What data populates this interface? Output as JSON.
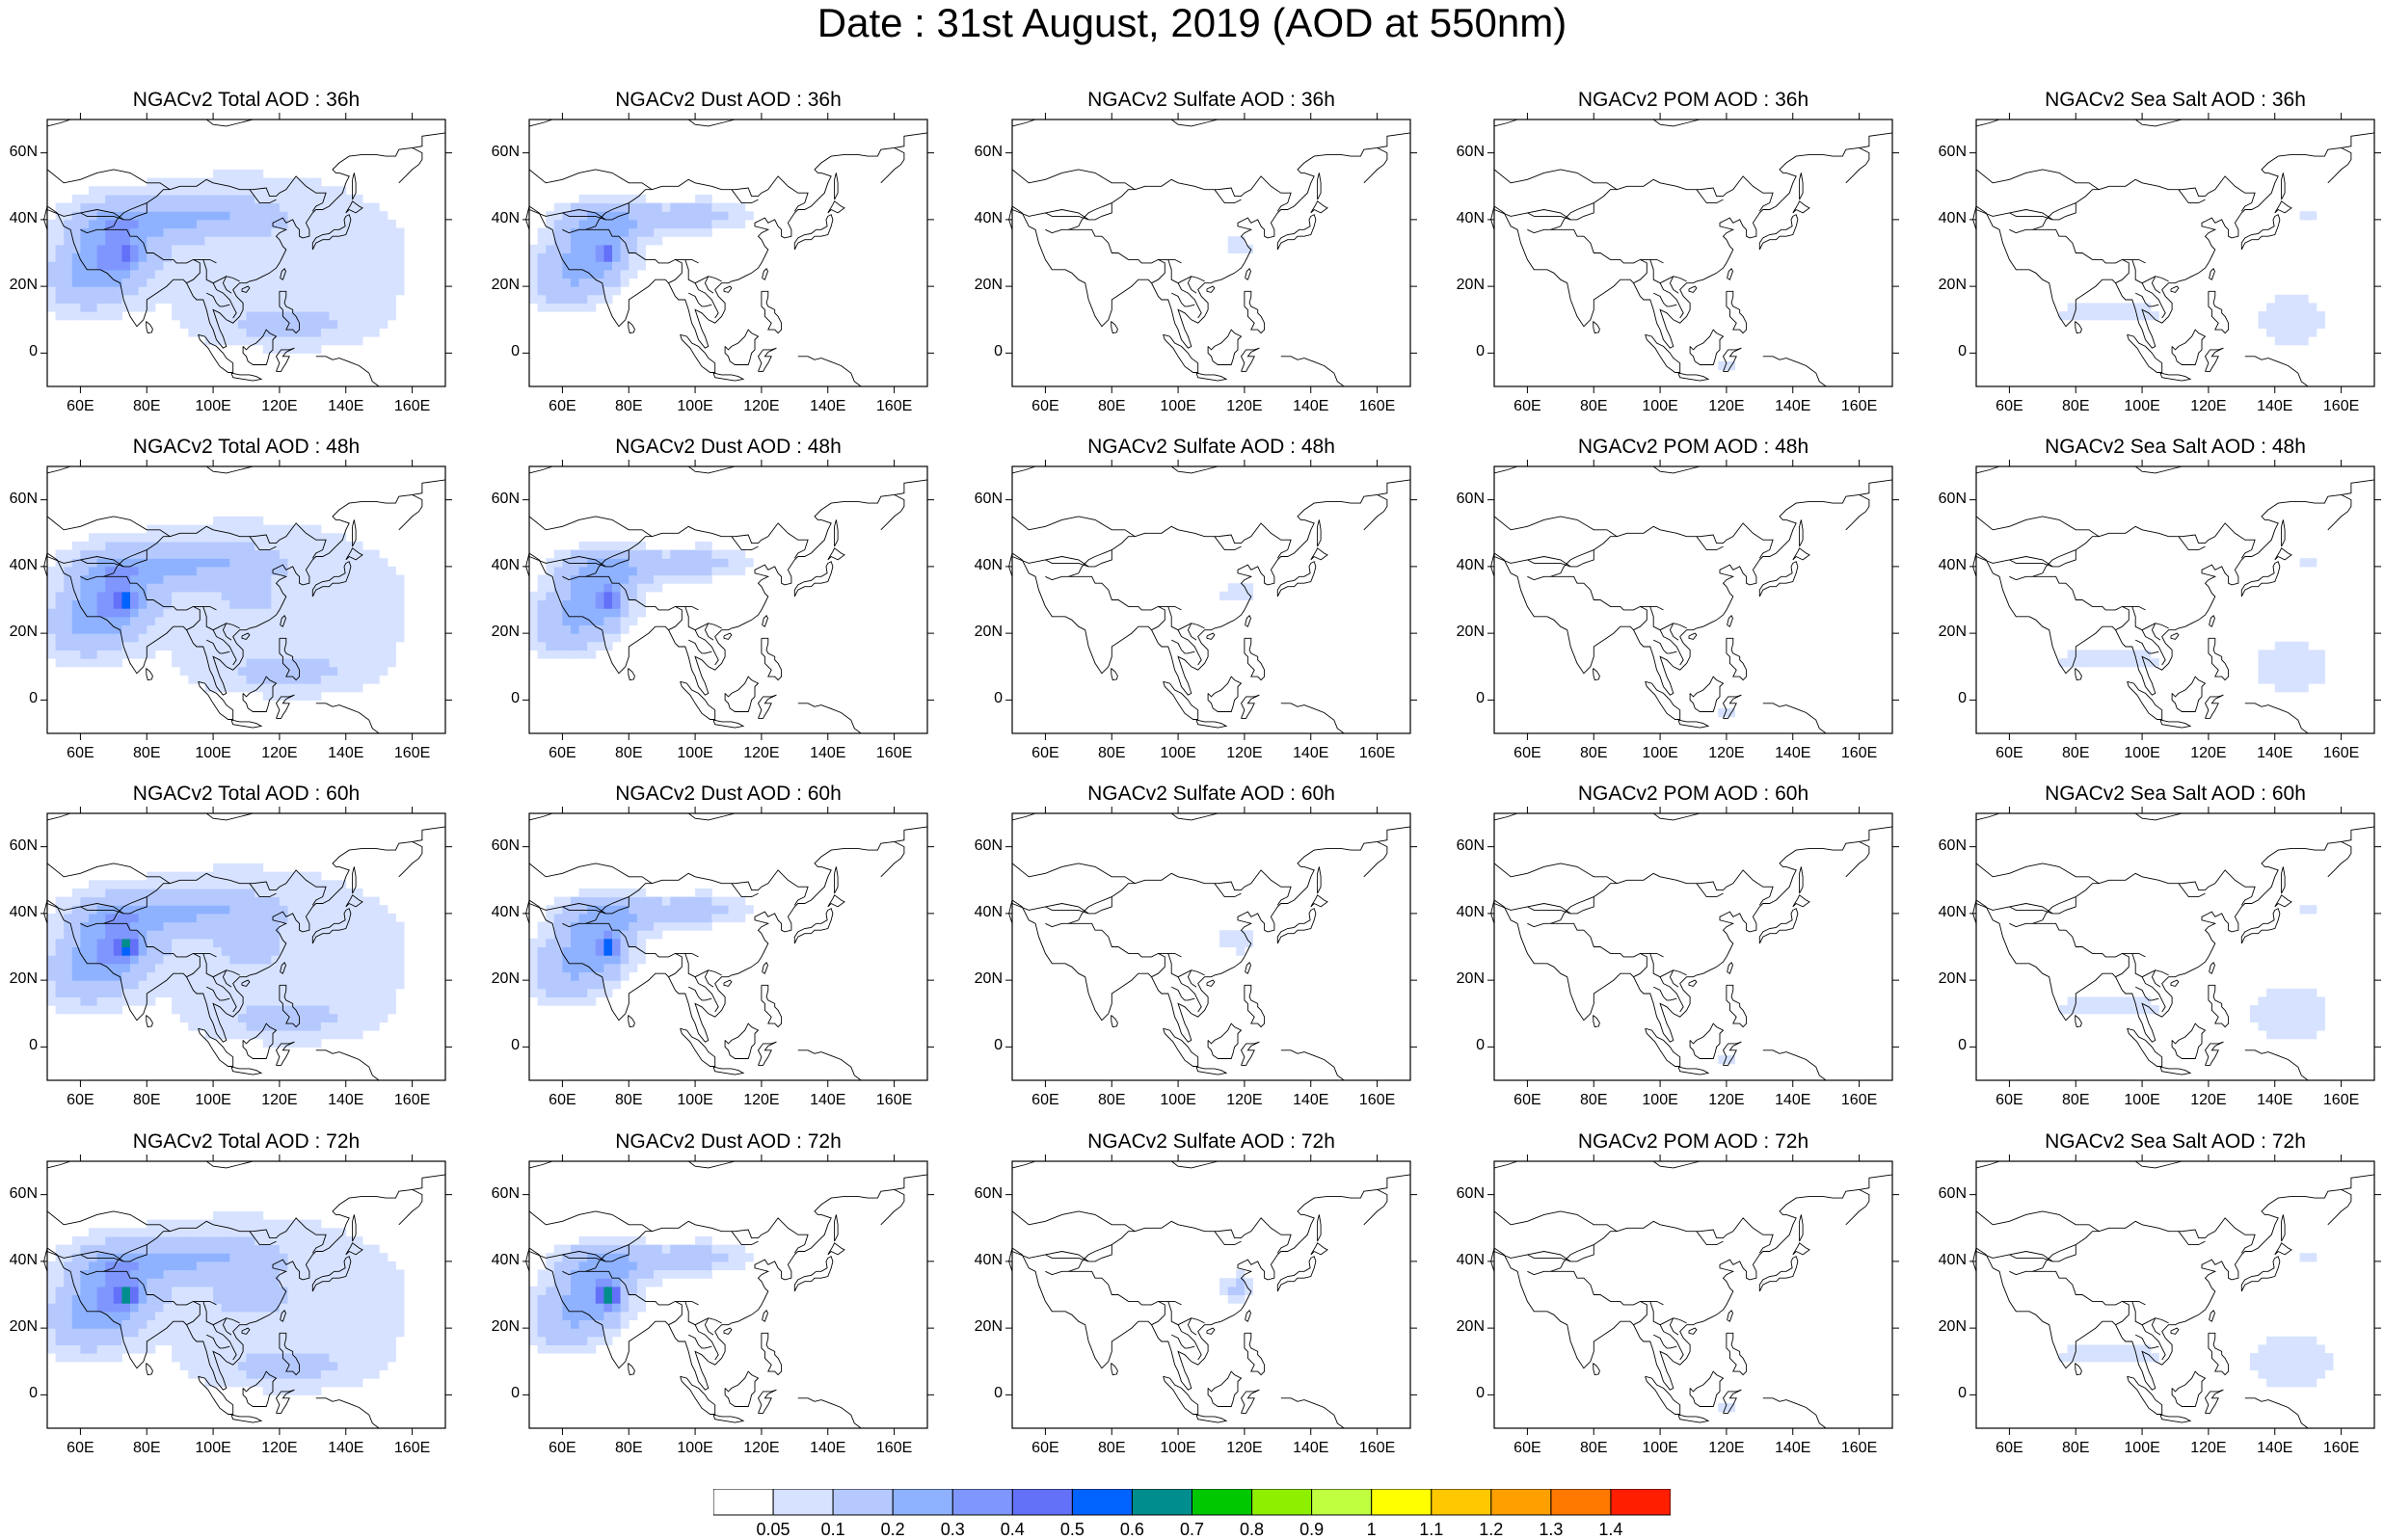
{
  "title": "Date : 31st August, 2019 (AOD at 550nm)",
  "panels": [
    {
      "title": "NGACv2 Total AOD : 36h"
    },
    {
      "title": "NGACv2 Dust AOD : 36h"
    },
    {
      "title": "NGACv2 Sulfate AOD : 36h"
    },
    {
      "title": "NGACv2 POM AOD : 36h"
    },
    {
      "title": "NGACv2 Sea Salt AOD : 36h"
    },
    {
      "title": "NGACv2 Total AOD : 48h"
    },
    {
      "title": "NGACv2 Dust AOD : 48h"
    },
    {
      "title": "NGACv2 Sulfate AOD : 48h"
    },
    {
      "title": "NGACv2 POM AOD : 48h"
    },
    {
      "title": "NGACv2 Sea Salt AOD : 48h"
    },
    {
      "title": "NGACv2 Total AOD : 60h"
    },
    {
      "title": "NGACv2 Dust AOD : 60h"
    },
    {
      "title": "NGACv2 Sulfate AOD : 60h"
    },
    {
      "title": "NGACv2 POM AOD : 60h"
    },
    {
      "title": "NGACv2 Sea Salt AOD : 60h"
    },
    {
      "title": "NGACv2 Total AOD : 72h"
    },
    {
      "title": "NGACv2 Dust AOD : 72h"
    },
    {
      "title": "NGACv2 Sulfate AOD : 72h"
    },
    {
      "title": "NGACv2 POM AOD : 72h"
    },
    {
      "title": "NGACv2 Sea Salt  AOD : 72h"
    }
  ],
  "axes": {
    "lat_labels": [
      "60N",
      "40N",
      "20N",
      "0"
    ],
    "lon_labels": [
      "60E",
      "80E",
      "100E",
      "120E",
      "140E",
      "160E"
    ]
  },
  "colorbar": {
    "labels": [
      "0.05",
      "0.1",
      "0.2",
      "0.3",
      "0.4",
      "0.5",
      "0.6",
      "0.7",
      "0.8",
      "0.9",
      "1",
      "1.1",
      "1.2",
      "1.3",
      "1.4"
    ],
    "colors": [
      "#ffffff",
      "#d6e2ff",
      "#b5c9ff",
      "#8eb2ff",
      "#7f96ff",
      "#6370f8",
      "#0062ff",
      "#008d8d",
      "#00c800",
      "#8ef000",
      "#c0ff40",
      "#ffff00",
      "#ffc800",
      "#ffa000",
      "#ff7800",
      "#ff1e00"
    ]
  }
}
